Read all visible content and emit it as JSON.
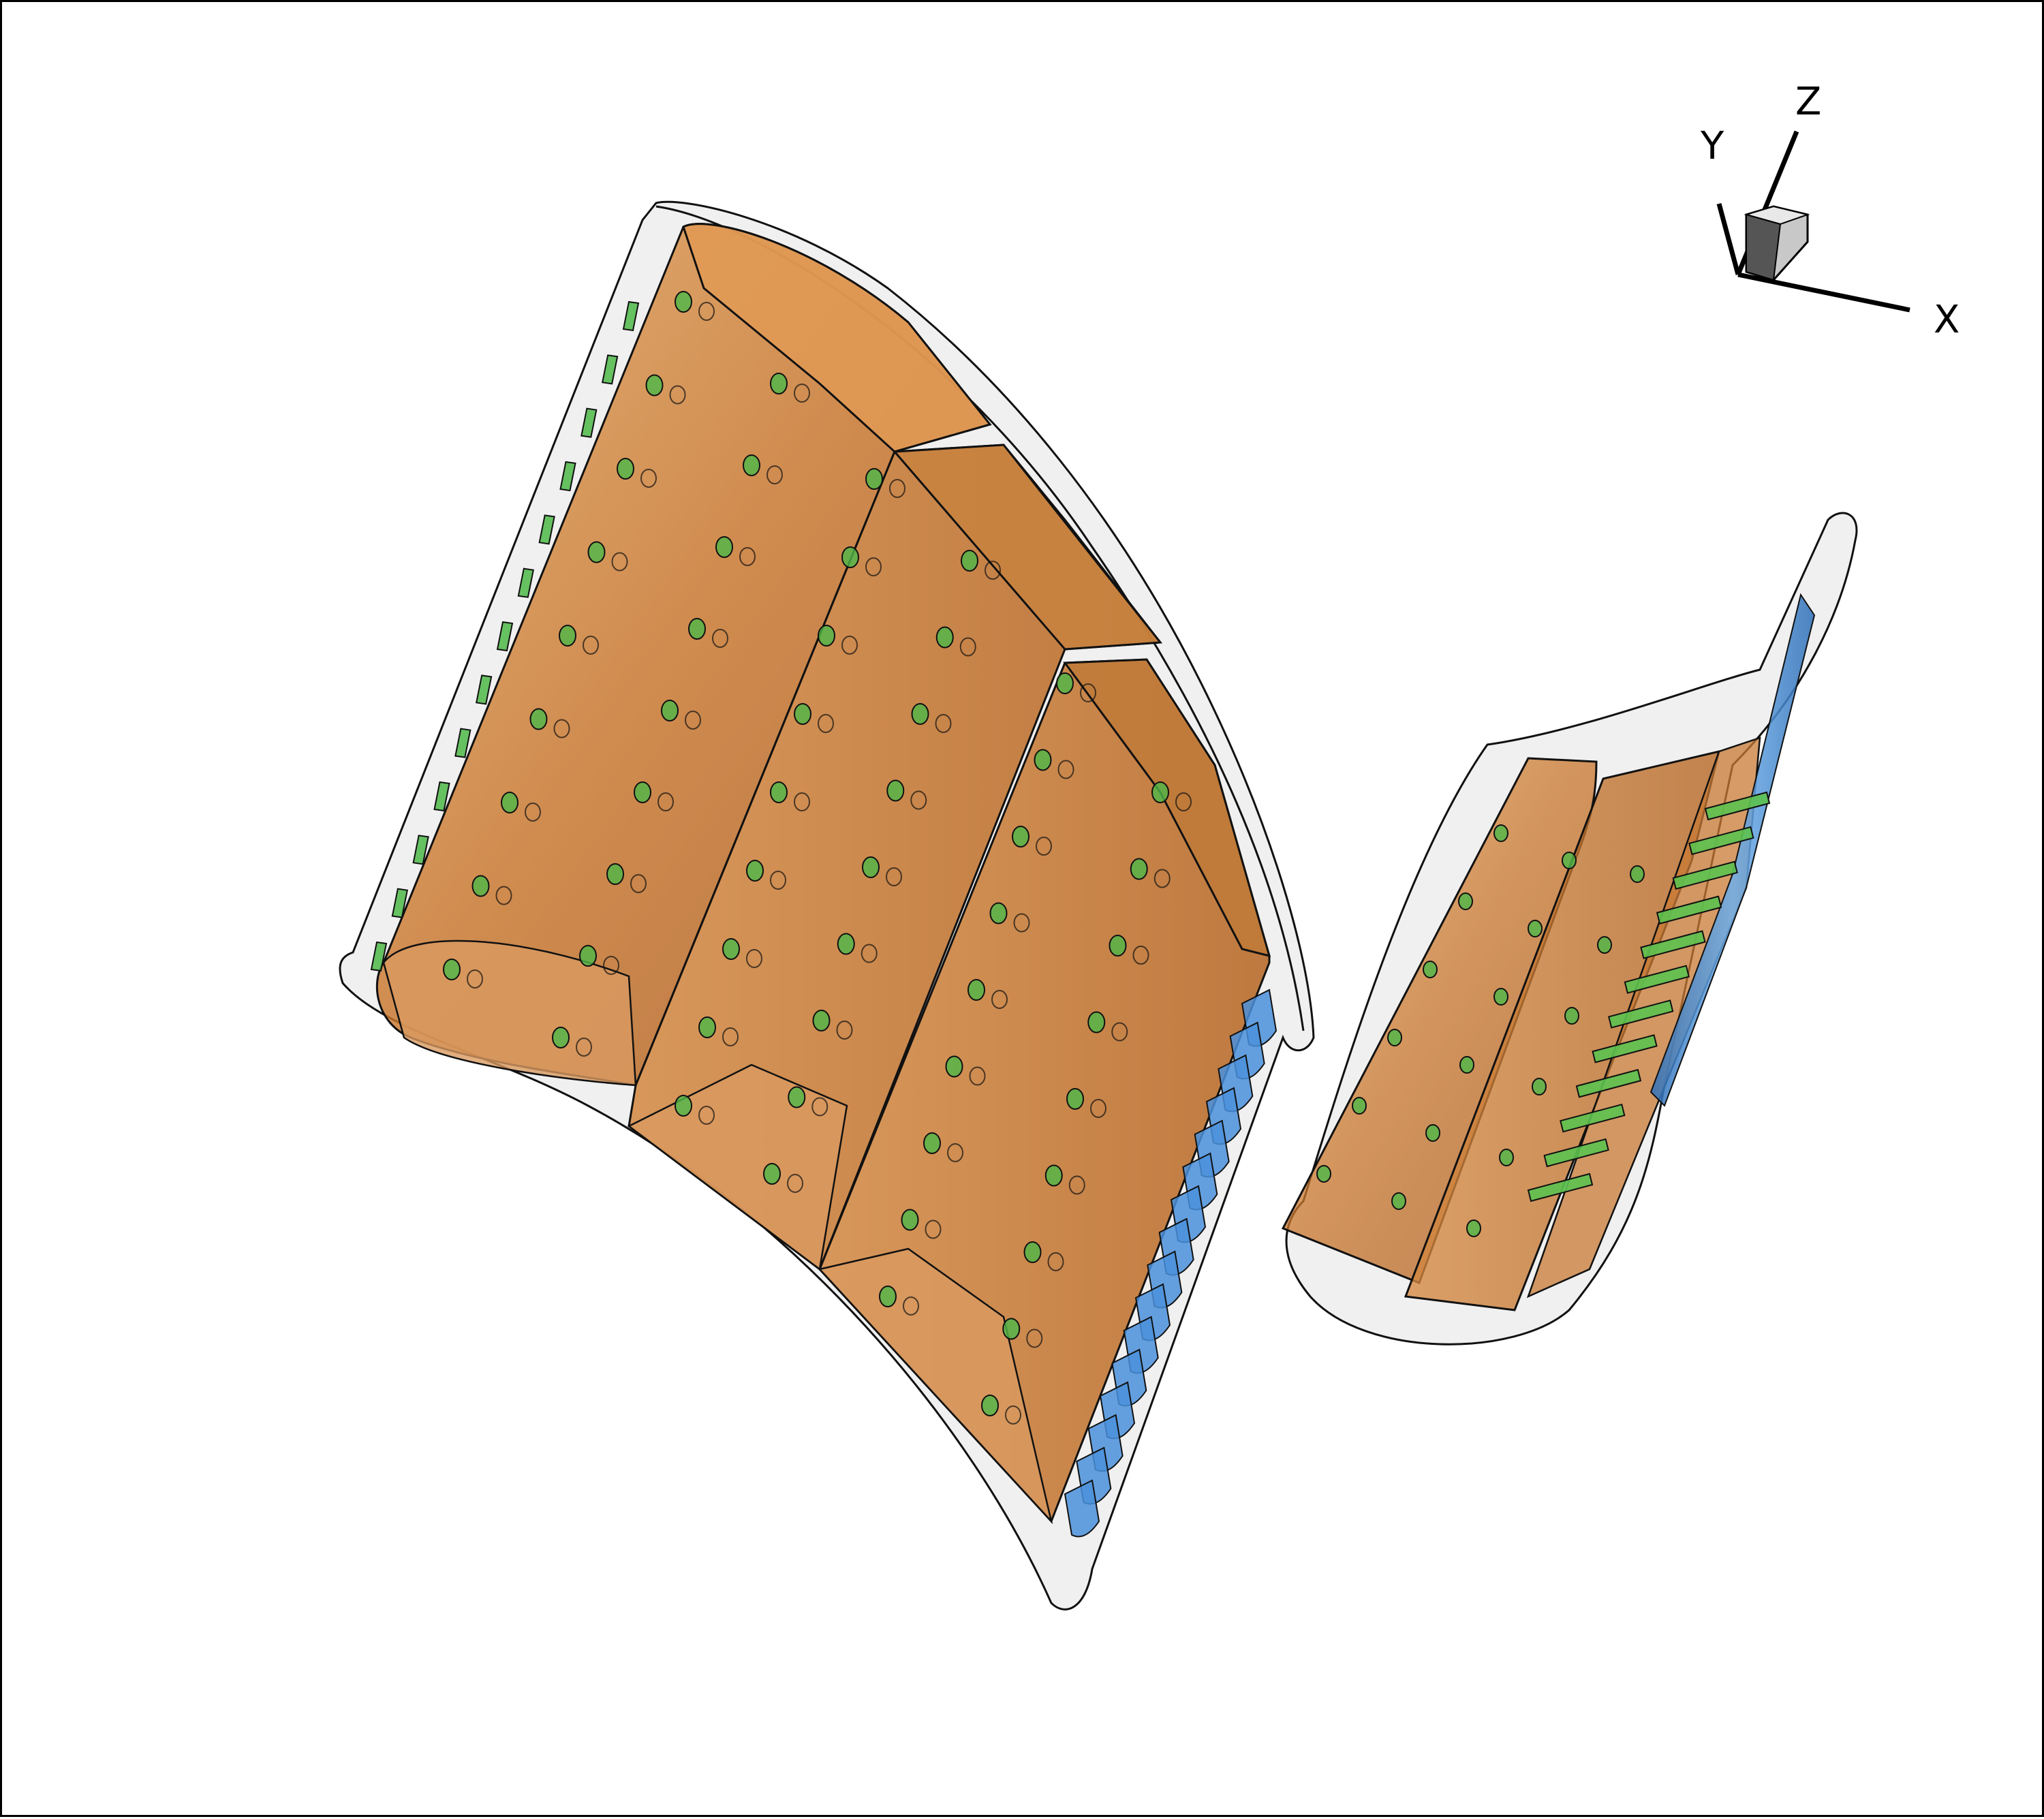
{
  "figure": {
    "axis_labels": {
      "x": "X",
      "y": "Y",
      "z": "Z"
    },
    "colors": {
      "outer_shell": "#d6d6d6",
      "cavity": "#c8742a",
      "cavity_light": "#e0a060",
      "pin_fins": "#3f8fd6",
      "film_holes": "#4db848",
      "edge": "#111111"
    },
    "components": {
      "vane_1": "transparent-airfoil-with-internal-cavities",
      "vane_2": "transparent-airfoil-with-internal-cavities"
    }
  }
}
